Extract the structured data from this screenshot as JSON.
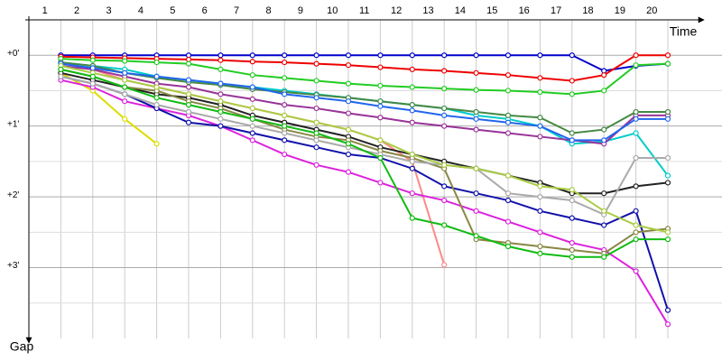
{
  "chart_data": {
    "type": "line",
    "x_label": "Time",
    "y_label": "Gap",
    "categories": [
      "1",
      "2",
      "3",
      "4",
      "5",
      "6",
      "7",
      "8",
      "9",
      "10",
      "11",
      "12",
      "13",
      "14",
      "15",
      "16",
      "17",
      "18",
      "19",
      "20"
    ],
    "ylim": [
      -0.5,
      4
    ],
    "yticks": [
      {
        "value": 0,
        "label": "+0'"
      },
      {
        "value": 1,
        "label": "+1'"
      },
      {
        "value": 2,
        "label": "+2'"
      },
      {
        "value": 3,
        "label": "+3'"
      }
    ],
    "minor_yticks": [
      0.5,
      1.5,
      2.5,
      3.5
    ],
    "grid": true,
    "series": [
      {
        "color": "#0000cc",
        "values": [
          0,
          0,
          0,
          0,
          0,
          0,
          0,
          0,
          0,
          0,
          0,
          0,
          0,
          0,
          0,
          0,
          0,
          0.22,
          0.15,
          0.12
        ]
      },
      {
        "color": "#ee0000",
        "values": [
          0.02,
          0.03,
          0.04,
          0.05,
          0.06,
          0.07,
          0.09,
          0.1,
          0.12,
          0.14,
          0.17,
          0.2,
          0.22,
          0.25,
          0.28,
          0.32,
          0.36,
          0.28,
          0,
          0
        ]
      },
      {
        "color": "#22cc22",
        "values": [
          0.05,
          0.07,
          0.08,
          0.1,
          0.12,
          0.2,
          0.28,
          0.32,
          0.36,
          0.4,
          0.43,
          0.45,
          0.47,
          0.49,
          0.5,
          0.52,
          0.55,
          0.5,
          0.14,
          0.12
        ]
      },
      {
        "color": "#dddd00",
        "values": [
          0.25,
          0.5,
          0.9,
          1.25,
          null,
          null,
          null,
          null,
          null,
          null,
          null,
          null,
          null,
          null,
          null,
          null,
          null,
          null,
          null,
          null
        ]
      },
      {
        "color": "#ff8888",
        "values": [
          0.1,
          0.2,
          0.35,
          0.45,
          0.55,
          0.65,
          0.75,
          0.85,
          0.95,
          1.05,
          1.2,
          1.5,
          2.96,
          null,
          null,
          null,
          null,
          null,
          null,
          null
        ]
      },
      {
        "color": "#dd22dd",
        "values": [
          0.35,
          0.45,
          0.65,
          0.75,
          0.85,
          1.0,
          1.2,
          1.4,
          1.55,
          1.65,
          1.8,
          1.95,
          2.05,
          2.2,
          2.35,
          2.5,
          2.65,
          2.75,
          3.05,
          3.8
        ]
      },
      {
        "color": "#1111aa",
        "values": [
          0.3,
          0.4,
          0.55,
          0.75,
          0.95,
          1.0,
          1.1,
          1.2,
          1.3,
          1.4,
          1.45,
          1.6,
          1.85,
          1.95,
          2.05,
          2.2,
          2.3,
          2.4,
          2.2,
          3.6
        ]
      },
      {
        "color": "#222222",
        "values": [
          0.25,
          0.35,
          0.45,
          0.55,
          0.6,
          0.7,
          0.85,
          0.95,
          1.05,
          1.15,
          1.3,
          1.4,
          1.5,
          1.6,
          1.7,
          1.8,
          1.95,
          1.95,
          1.85,
          1.8
        ]
      },
      {
        "color": "#888844",
        "values": [
          0.2,
          0.3,
          0.45,
          0.5,
          0.65,
          0.75,
          0.9,
          1.05,
          1.15,
          1.2,
          1.35,
          1.45,
          1.6,
          2.6,
          2.65,
          2.7,
          2.75,
          2.8,
          2.5,
          2.45
        ]
      },
      {
        "color": "#00cccc",
        "values": [
          0.1,
          0.15,
          0.2,
          0.3,
          0.35,
          0.4,
          0.45,
          0.5,
          0.55,
          0.6,
          0.65,
          0.7,
          0.75,
          0.85,
          0.9,
          1.0,
          1.25,
          1.22,
          1.1,
          1.7
        ]
      },
      {
        "color": "#993399",
        "values": [
          0.15,
          0.2,
          0.3,
          0.4,
          0.45,
          0.55,
          0.62,
          0.7,
          0.75,
          0.82,
          0.88,
          0.95,
          1.0,
          1.05,
          1.1,
          1.15,
          1.2,
          1.25,
          0.85,
          0.85
        ]
      },
      {
        "color": "#448844",
        "values": [
          0.1,
          0.15,
          0.25,
          0.32,
          0.38,
          0.42,
          0.48,
          0.52,
          0.56,
          0.6,
          0.65,
          0.7,
          0.75,
          0.8,
          0.85,
          0.88,
          1.1,
          1.05,
          0.8,
          0.8
        ]
      },
      {
        "color": "#aaaaaa",
        "values": [
          0.3,
          0.4,
          0.55,
          0.7,
          0.8,
          0.9,
          1.0,
          1.1,
          1.2,
          1.3,
          1.4,
          1.5,
          1.55,
          1.6,
          1.95,
          2.0,
          2.05,
          2.25,
          1.45,
          1.45
        ]
      },
      {
        "color": "#2266ee",
        "values": [
          0.12,
          0.18,
          0.25,
          0.3,
          0.35,
          0.4,
          0.45,
          0.55,
          0.6,
          0.65,
          0.72,
          0.78,
          0.85,
          0.9,
          0.95,
          1.0,
          1.2,
          1.2,
          0.9,
          0.9
        ]
      },
      {
        "color": "#aacc44",
        "values": [
          0.15,
          0.25,
          0.35,
          0.45,
          0.55,
          0.65,
          0.75,
          0.85,
          0.95,
          1.05,
          1.2,
          1.4,
          1.55,
          1.6,
          1.7,
          1.85,
          1.9,
          2.2,
          2.4,
          2.5
        ]
      },
      {
        "color": "#11bb11",
        "values": [
          0.2,
          0.3,
          0.45,
          0.6,
          0.7,
          0.8,
          0.9,
          1.0,
          1.1,
          1.25,
          1.45,
          2.3,
          2.4,
          2.55,
          2.7,
          2.8,
          2.85,
          2.85,
          2.6,
          2.6
        ]
      }
    ]
  }
}
